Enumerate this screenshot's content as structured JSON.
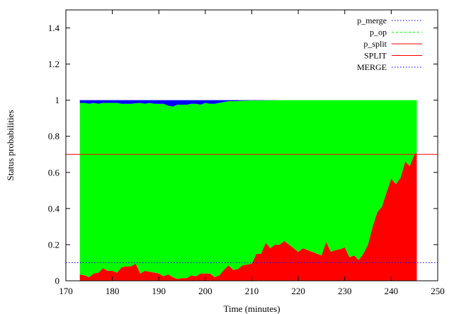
{
  "chart_data": {
    "type": "area",
    "xlabel": "Time (minutes)",
    "ylabel": "Status probabilities",
    "xlim": [
      170,
      250
    ],
    "ylim": [
      0,
      1.5
    ],
    "xticks": [
      170,
      180,
      190,
      200,
      210,
      220,
      230,
      240,
      250
    ],
    "yticks": [
      0,
      0.2,
      0.4,
      0.6,
      0.8,
      1,
      1.2,
      1.4
    ],
    "xtick_labels": [
      "170",
      "180",
      "190",
      "200",
      "210",
      "220",
      "230",
      "240",
      "250"
    ],
    "ytick_labels": [
      "0",
      "0.2",
      "0.4",
      "0.6",
      "0.8",
      "1",
      "1.2",
      "1.4"
    ],
    "grid": false,
    "legend_position": "top-right",
    "x": [
      173,
      174,
      175,
      176,
      177,
      178,
      179,
      180,
      181,
      182,
      183,
      184,
      185,
      186,
      187,
      188,
      189,
      190,
      191,
      192,
      193,
      194,
      195,
      196,
      197,
      198,
      199,
      200,
      201,
      202,
      203,
      204,
      205,
      206,
      207,
      208,
      209,
      210,
      211,
      212,
      213,
      214,
      215,
      216,
      217,
      218,
      219,
      220,
      221,
      222,
      223,
      224,
      225,
      226,
      227,
      228,
      229,
      230,
      231,
      232,
      233,
      234,
      235,
      236,
      237,
      238,
      239,
      240,
      241,
      242,
      243,
      244,
      245,
      245.5
    ],
    "series": [
      {
        "name": "p_split",
        "color": "#ff0000",
        "style": "filled-area",
        "values": [
          0.035,
          0.03,
          0.02,
          0.04,
          0.045,
          0.07,
          0.055,
          0.055,
          0.045,
          0.075,
          0.08,
          0.08,
          0.095,
          0.04,
          0.055,
          0.05,
          0.045,
          0.04,
          0.025,
          0.035,
          0.02,
          0.01,
          0.015,
          0.015,
          0.03,
          0.025,
          0.04,
          0.04,
          0.04,
          0.02,
          0.03,
          0.06,
          0.085,
          0.06,
          0.065,
          0.085,
          0.09,
          0.095,
          0.15,
          0.15,
          0.21,
          0.18,
          0.2,
          0.2,
          0.22,
          0.2,
          0.18,
          0.16,
          0.18,
          0.17,
          0.16,
          0.15,
          0.14,
          0.215,
          0.16,
          0.17,
          0.175,
          0.185,
          0.13,
          0.14,
          0.115,
          0.15,
          0.2,
          0.3,
          0.38,
          0.41,
          0.49,
          0.565,
          0.535,
          0.57,
          0.66,
          0.635,
          0.7,
          0.71
        ]
      },
      {
        "name": "p_op",
        "color": "#00ff00",
        "style": "filled-area",
        "values": [
          0.95,
          0.955,
          0.96,
          0.945,
          0.935,
          0.915,
          0.93,
          0.93,
          0.94,
          0.905,
          0.9,
          0.9,
          0.888,
          0.945,
          0.925,
          0.935,
          0.935,
          0.94,
          0.955,
          0.935,
          0.945,
          0.965,
          0.96,
          0.96,
          0.95,
          0.955,
          0.935,
          0.945,
          0.94,
          0.96,
          0.955,
          0.93,
          0.91,
          0.935,
          0.93,
          0.912,
          0.907,
          0.903,
          0.848,
          0.848,
          0.789,
          0.819,
          0.799,
          0.8,
          0.78,
          0.8,
          0.82,
          0.84,
          0.82,
          0.83,
          0.84,
          0.85,
          0.86,
          0.785,
          0.84,
          0.83,
          0.825,
          0.815,
          0.87,
          0.86,
          0.885,
          0.85,
          0.8,
          0.7,
          0.62,
          0.59,
          0.51,
          0.435,
          0.465,
          0.43,
          0.34,
          0.365,
          0.3,
          0.29
        ]
      },
      {
        "name": "p_merge",
        "color": "#0000ff",
        "style": "filled-area",
        "values": [
          0.015,
          0.015,
          0.02,
          0.015,
          0.02,
          0.015,
          0.015,
          0.015,
          0.015,
          0.02,
          0.02,
          0.02,
          0.017,
          0.015,
          0.02,
          0.015,
          0.02,
          0.02,
          0.02,
          0.03,
          0.035,
          0.025,
          0.025,
          0.025,
          0.02,
          0.02,
          0.025,
          0.015,
          0.02,
          0.02,
          0.015,
          0.01,
          0.005,
          0.005,
          0.005,
          0.003,
          0.003,
          0.002,
          0.002,
          0.002,
          0.001,
          0.001,
          0.001,
          0,
          0,
          0,
          0,
          0,
          0,
          0,
          0,
          0,
          0,
          0,
          0,
          0,
          0,
          0,
          0,
          0,
          0,
          0,
          0,
          0,
          0,
          0,
          0,
          0,
          0,
          0,
          0,
          0,
          0,
          0
        ]
      }
    ],
    "thresholds": [
      {
        "name": "SPLIT",
        "value": 0.7,
        "color": "#ff0000",
        "style": "solid"
      },
      {
        "name": "MERGE",
        "value": 0.1,
        "color": "#0000ff",
        "style": "dotted"
      }
    ],
    "legend": [
      {
        "label": "p_merge",
        "color": "#0000ff",
        "style": "dotted"
      },
      {
        "label": "p_op",
        "color": "#00ff00",
        "style": "dashed"
      },
      {
        "label": "p_split",
        "color": "#ff0000",
        "style": "solid"
      },
      {
        "label": "SPLIT",
        "color": "#ff0000",
        "style": "solid"
      },
      {
        "label": "MERGE",
        "color": "#0000ff",
        "style": "dotted"
      }
    ]
  }
}
